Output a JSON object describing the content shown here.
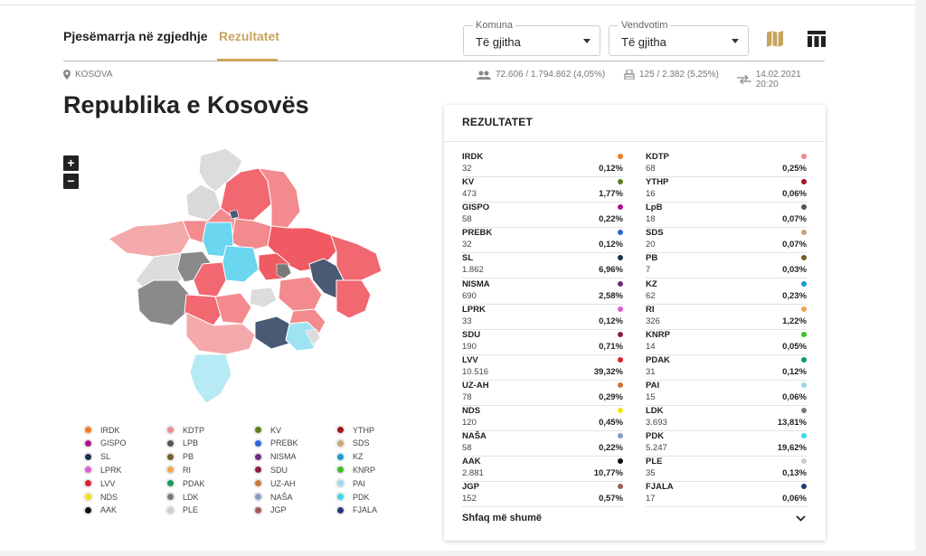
{
  "tabs": {
    "turnout": "Pjesëmarrja në zgjedhje",
    "results": "Rezultatet"
  },
  "filters": {
    "komuna": {
      "label": "Komuna",
      "value": "Të gjitha"
    },
    "vendvotim": {
      "label": "Vendvotim",
      "value": "Të gjitha"
    }
  },
  "icons": {
    "map_view": "map-icon",
    "table_view": "table-icon",
    "location": "location-pin-icon",
    "voters": "people-icon",
    "stations": "ballot-box-icon",
    "updated": "sync-arrows-icon",
    "expand": "chevron-down-icon"
  },
  "info": {
    "location": "KOSOVA",
    "voters": "72.606 / 1.794.862 (4,05%)",
    "stations": "125 / 2.382 (5,25%)",
    "updated": "14.02.2021 20:20"
  },
  "page_title": "Republika e Kosovës",
  "map": {
    "zoom_in": "+",
    "zoom_out": "−"
  },
  "results": {
    "title": "REZULTATET",
    "show_more": "Shfaq më shumë",
    "left": [
      {
        "name": "IRDK",
        "votes": "32",
        "pct": "0,12%",
        "color": "#f07a1d"
      },
      {
        "name": "KV",
        "votes": "473",
        "pct": "1,77%",
        "color": "#5f7d1c"
      },
      {
        "name": "GISPO",
        "votes": "58",
        "pct": "0,22%",
        "color": "#b0138e"
      },
      {
        "name": "PREBK",
        "votes": "32",
        "pct": "0,12%",
        "color": "#2a66d9"
      },
      {
        "name": "SL",
        "votes": "1.862",
        "pct": "6,96%",
        "color": "#1e2f4f"
      },
      {
        "name": "NISMA",
        "votes": "690",
        "pct": "2,58%",
        "color": "#6a2c7d"
      },
      {
        "name": "LPRK",
        "votes": "33",
        "pct": "0,12%",
        "color": "#e35ad3"
      },
      {
        "name": "SDU",
        "votes": "190",
        "pct": "0,71%",
        "color": "#8a1d3a"
      },
      {
        "name": "LVV",
        "votes": "10.516",
        "pct": "39,32%",
        "color": "#e0202d"
      },
      {
        "name": "UZ-AH",
        "votes": "78",
        "pct": "0,29%",
        "color": "#c9783c"
      },
      {
        "name": "NDS",
        "votes": "120",
        "pct": "0,45%",
        "color": "#f2e314"
      },
      {
        "name": "NAŠA",
        "votes": "58",
        "pct": "0,22%",
        "color": "#8a9cc4"
      },
      {
        "name": "AAK",
        "votes": "2.881",
        "pct": "10,77%",
        "color": "#111111"
      },
      {
        "name": "JGP",
        "votes": "152",
        "pct": "0,57%",
        "color": "#a05a5a"
      }
    ],
    "right": [
      {
        "name": "KDTP",
        "votes": "68",
        "pct": "0,25%",
        "color": "#f08a8e"
      },
      {
        "name": "YTHP",
        "votes": "16",
        "pct": "0,06%",
        "color": "#a4161a"
      },
      {
        "name": "LpB",
        "votes": "18",
        "pct": "0,07%",
        "color": "#555555"
      },
      {
        "name": "SDS",
        "votes": "20",
        "pct": "0,07%",
        "color": "#c8a87a"
      },
      {
        "name": "PB",
        "votes": "7",
        "pct": "0,03%",
        "color": "#7a5a2a"
      },
      {
        "name": "KZ",
        "votes": "62",
        "pct": "0,23%",
        "color": "#1a9bd7"
      },
      {
        "name": "RI",
        "votes": "326",
        "pct": "1,22%",
        "color": "#f5a34a"
      },
      {
        "name": "KNRP",
        "votes": "14",
        "pct": "0,05%",
        "color": "#3fbf2a"
      },
      {
        "name": "PDAK",
        "votes": "31",
        "pct": "0,12%",
        "color": "#0f9d58"
      },
      {
        "name": "PAI",
        "votes": "15",
        "pct": "0,06%",
        "color": "#9fd8ee"
      },
      {
        "name": "LDK",
        "votes": "3.693",
        "pct": "13,81%",
        "color": "#7a7a7a"
      },
      {
        "name": "PDK",
        "votes": "5.247",
        "pct": "19,62%",
        "color": "#3fd6ec"
      },
      {
        "name": "PLE",
        "votes": "35",
        "pct": "0,13%",
        "color": "#cccccc"
      },
      {
        "name": "FJALA",
        "votes": "17",
        "pct": "0,06%",
        "color": "#1f3a7a"
      }
    ]
  },
  "legend": [
    {
      "name": "IRDK",
      "color": "#f07a1d"
    },
    {
      "name": "KDTP",
      "color": "#f08a8e"
    },
    {
      "name": "KV",
      "color": "#5f7d1c"
    },
    {
      "name": "YTHP",
      "color": "#a4161a"
    },
    {
      "name": "GISPO",
      "color": "#b0138e"
    },
    {
      "name": "LPB",
      "color": "#555555"
    },
    {
      "name": "PREBK",
      "color": "#2a66d9"
    },
    {
      "name": "SDS",
      "color": "#c8a87a"
    },
    {
      "name": "SL",
      "color": "#1e2f4f"
    },
    {
      "name": "PB",
      "color": "#7a5a2a"
    },
    {
      "name": "NISMA",
      "color": "#6a2c7d"
    },
    {
      "name": "KZ",
      "color": "#1a9bd7"
    },
    {
      "name": "LPRK",
      "color": "#e35ad3"
    },
    {
      "name": "RI",
      "color": "#f5a34a"
    },
    {
      "name": "SDU",
      "color": "#8a1d3a"
    },
    {
      "name": "KNRP",
      "color": "#3fbf2a"
    },
    {
      "name": "LVV",
      "color": "#e0202d"
    },
    {
      "name": "PDAK",
      "color": "#0f9d58"
    },
    {
      "name": "UZ-AH",
      "color": "#c9783c"
    },
    {
      "name": "PAI",
      "color": "#9fd8ee"
    },
    {
      "name": "NDS",
      "color": "#f2e314"
    },
    {
      "name": "LDK",
      "color": "#7a7a7a"
    },
    {
      "name": "NAŠA",
      "color": "#8a9cc4"
    },
    {
      "name": "PDK",
      "color": "#3fd6ec"
    },
    {
      "name": "AAK",
      "color": "#111111"
    },
    {
      "name": "PLE",
      "color": "#cccccc"
    },
    {
      "name": "JGP",
      "color": "#a05a5a"
    },
    {
      "name": "FJALA",
      "color": "#1f3a7a"
    }
  ]
}
